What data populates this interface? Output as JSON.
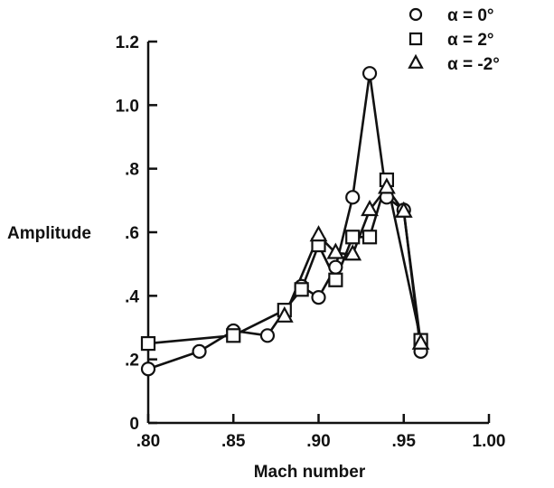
{
  "chart_data": {
    "type": "line",
    "xlabel": "Mach number",
    "ylabel": "Amplitude",
    "xlim": [
      0.8,
      1.0
    ],
    "ylim": [
      0,
      1.2
    ],
    "x_ticks": [
      0.8,
      0.85,
      0.9,
      0.95,
      1.0
    ],
    "x_tick_labels": [
      ".80",
      ".85",
      ".90",
      ".95",
      "1.00"
    ],
    "y_ticks": [
      0,
      0.2,
      0.4,
      0.6,
      0.8,
      1.0,
      1.2
    ],
    "y_tick_labels": [
      "0",
      ".2",
      ".4",
      ".6",
      ".8",
      "1.0",
      "1.2"
    ],
    "grid": false,
    "legend_position": "top-right",
    "series": [
      {
        "name": "α = 0°",
        "marker": "circle",
        "x": [
          0.8,
          0.83,
          0.85,
          0.87,
          0.89,
          0.9,
          0.91,
          0.92,
          0.93,
          0.94,
          0.95,
          0.96
        ],
        "y": [
          0.17,
          0.225,
          0.29,
          0.275,
          0.43,
          0.395,
          0.49,
          0.71,
          1.1,
          0.71,
          0.67,
          0.225
        ]
      },
      {
        "name": "α = 2°",
        "marker": "square",
        "x": [
          0.8,
          0.85,
          0.88,
          0.89,
          0.9,
          0.91,
          0.92,
          0.93,
          0.94,
          0.96
        ],
        "y": [
          0.25,
          0.275,
          0.355,
          0.42,
          0.56,
          0.45,
          0.585,
          0.585,
          0.765,
          0.26
        ]
      },
      {
        "name": "α = -2°",
        "marker": "triangle",
        "x": [
          0.88,
          0.9,
          0.91,
          0.92,
          0.93,
          0.94,
          0.95,
          0.96
        ],
        "y": [
          0.335,
          0.59,
          0.535,
          0.53,
          0.67,
          0.74,
          0.665,
          0.25
        ]
      }
    ]
  }
}
